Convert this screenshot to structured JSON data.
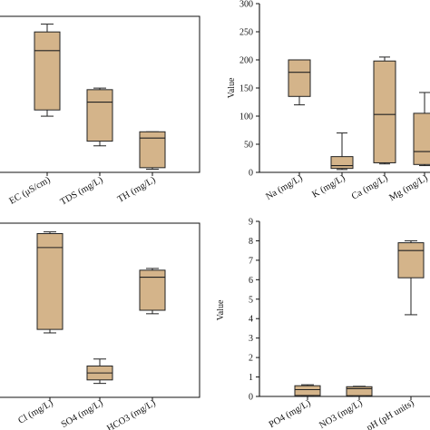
{
  "colors": {
    "box_fill": "#d4b48a",
    "box_stroke": "#222222",
    "axis": "#111111"
  },
  "chart_data": [
    {
      "type": "box",
      "panel": "top-left",
      "categories": [
        "EC (μS/cm)",
        "TDS (mg/L)",
        "TH (mg/L)"
      ],
      "boxes": [
        {
          "min": 0.36,
          "q1": 0.4,
          "median": 0.78,
          "q3": 0.9,
          "max": 0.95
        },
        {
          "min": 0.17,
          "q1": 0.2,
          "median": 0.45,
          "q3": 0.53,
          "max": 0.54
        },
        {
          "min": 0.02,
          "q1": 0.03,
          "median": 0.22,
          "q3": 0.26,
          "max": 0.26
        }
      ],
      "ylim": [
        0,
        1
      ],
      "yticks": [],
      "ylabel": "",
      "grid": false
    },
    {
      "type": "box",
      "panel": "top-right",
      "categories": [
        "Na (mg/L)",
        "K (mg/L)",
        "Ca  (mg/L)",
        "Mg (mg/L)"
      ],
      "boxes": [
        {
          "min": 120,
          "q1": 135,
          "median": 178,
          "q3": 200,
          "max": 200
        },
        {
          "min": 5,
          "q1": 7,
          "median": 12,
          "q3": 28,
          "max": 70
        },
        {
          "min": 15,
          "q1": 17,
          "median": 103,
          "q3": 198,
          "max": 205
        },
        {
          "min": 12,
          "q1": 14,
          "median": 37,
          "q3": 105,
          "max": 142
        }
      ],
      "ylim": [
        0,
        300
      ],
      "yticks": [
        "0",
        "50",
        "100",
        "150",
        "200",
        "250",
        "300"
      ],
      "ylabel": "Value",
      "grid": false
    },
    {
      "type": "box",
      "panel": "bottom-left",
      "categories": [
        "Cl (mg/L)",
        "SO4 (mg/L)",
        "HCO3 (mg/L)"
      ],
      "boxes": [
        {
          "min": 0.37,
          "q1": 0.39,
          "median": 0.86,
          "q3": 0.94,
          "max": 0.95
        },
        {
          "min": 0.08,
          "q1": 0.1,
          "median": 0.14,
          "q3": 0.18,
          "max": 0.22
        },
        {
          "min": 0.48,
          "q1": 0.5,
          "median": 0.69,
          "q3": 0.73,
          "max": 0.74
        }
      ],
      "ylim": [
        0,
        1
      ],
      "yticks": [],
      "ylabel": "",
      "grid": false
    },
    {
      "type": "box",
      "panel": "bottom-right",
      "categories": [
        "PO4 (mg/L)",
        "NO3 (mg/L)",
        "pH (pH units)"
      ],
      "boxes": [
        {
          "min": 0.02,
          "q1": 0.05,
          "median": 0.35,
          "q3": 0.55,
          "max": 0.6
        },
        {
          "min": 0.02,
          "q1": 0.04,
          "median": 0.4,
          "q3": 0.5,
          "max": 0.52
        },
        {
          "min": 4.2,
          "q1": 6.1,
          "median": 7.5,
          "q3": 7.9,
          "max": 8.0
        }
      ],
      "ylim": [
        0,
        9
      ],
      "yticks": [
        "0",
        "1",
        "2",
        "3",
        "4",
        "5",
        "6",
        "7",
        "8",
        "9"
      ],
      "ylabel": "Value",
      "grid": false
    }
  ]
}
